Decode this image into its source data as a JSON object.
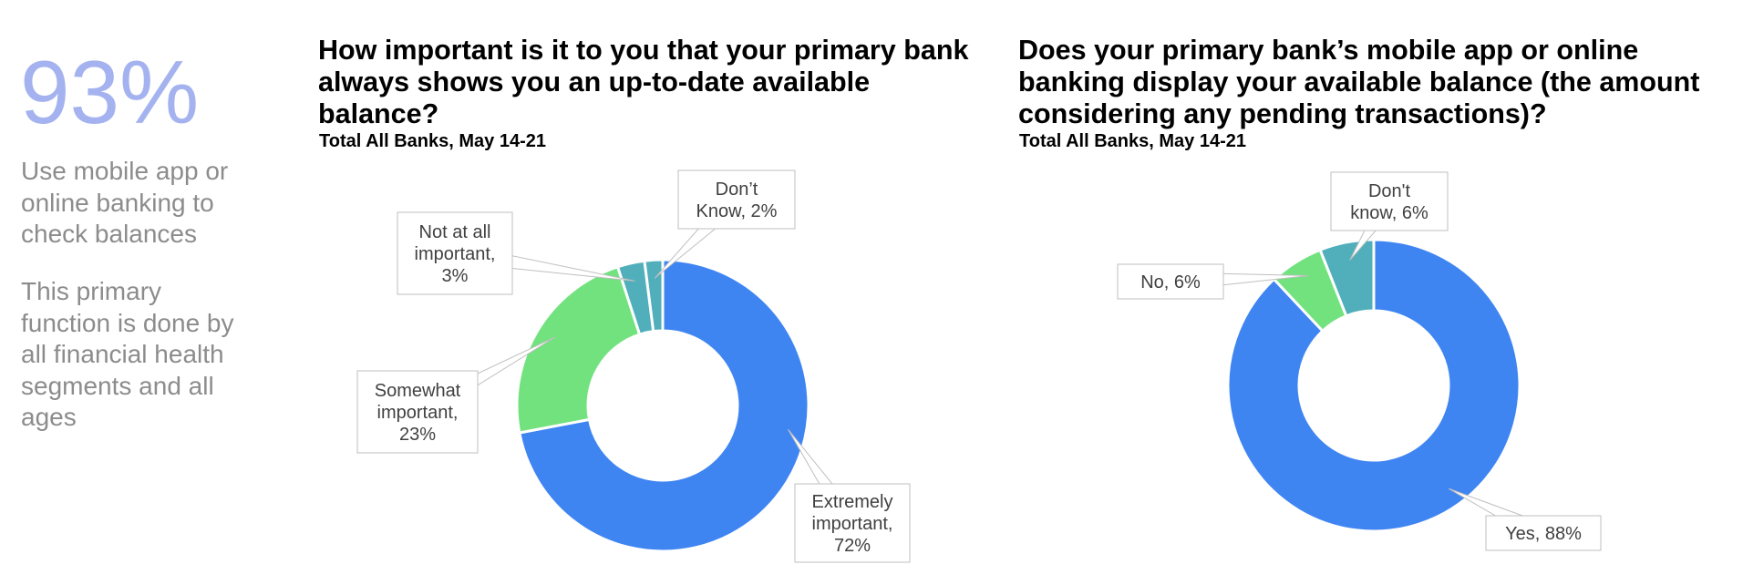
{
  "side": {
    "stat": "93%",
    "text1": "Use mobile app or online banking  to check balances",
    "text2": "This primary function is done by all financial health segments and all ages"
  },
  "colors": {
    "stat": "#a4b3ef",
    "blue": "#3f85f2",
    "green": "#72e27f",
    "teal": "#50afbb",
    "sidetext": "#8c8c8c"
  },
  "chart_data": [
    {
      "type": "pie",
      "variant": "donut",
      "title": "How important is it to you that your primary bank always shows you an up-to-date available balance?",
      "subtitle": "Total All Banks, May 14-21",
      "slices": [
        {
          "label": "Extremely important, 72%",
          "value": 72,
          "color": "#3f85f2"
        },
        {
          "label": "Somewhat important, 23%",
          "value": 23,
          "color": "#72e27f"
        },
        {
          "label": "Not at all important, 3%",
          "value": 3,
          "color": "#50afbb"
        },
        {
          "label": "Don’t Know, 2%",
          "value": 2,
          "color": "#50afbb"
        }
      ]
    },
    {
      "type": "pie",
      "variant": "donut",
      "title": "Does your primary bank’s mobile app or online banking display your available balance (the amount considering any pending transactions)?",
      "subtitle": "Total All Banks, May 14-21",
      "slices": [
        {
          "label": "Yes, 88%",
          "value": 88,
          "color": "#3f85f2"
        },
        {
          "label": "No, 6%",
          "value": 6,
          "color": "#72e27f"
        },
        {
          "label": "Don't know, 6%",
          "value": 6,
          "color": "#50afbb"
        }
      ]
    }
  ]
}
